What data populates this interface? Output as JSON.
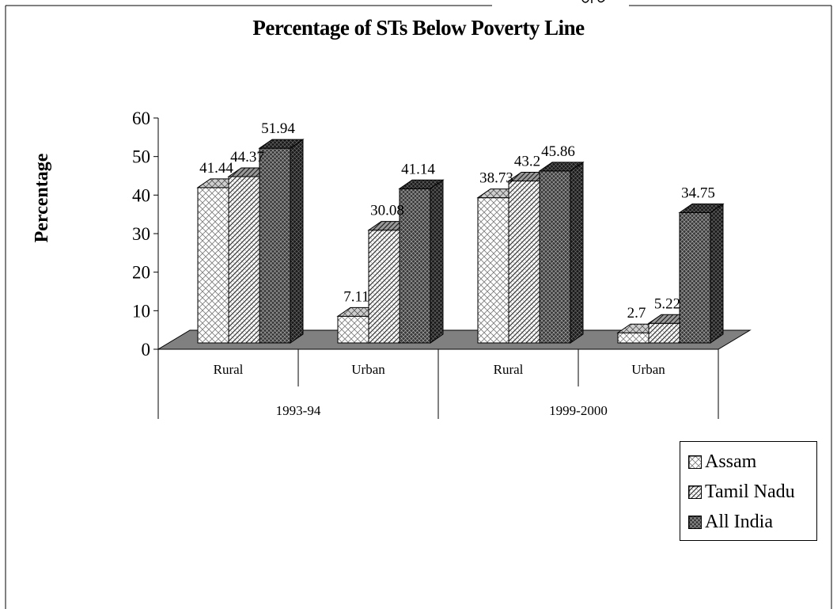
{
  "chart_data": {
    "type": "bar",
    "title": "Percentage of STs Below Poverty Line",
    "ylabel": "Percentage",
    "xlabel": "",
    "ylim": [
      0,
      60
    ],
    "yticks": [
      "0",
      "10",
      "20",
      "30",
      "40",
      "50",
      "60"
    ],
    "groups": [
      {
        "label": "1993-94",
        "categories": [
          "Rural",
          "Urban"
        ]
      },
      {
        "label": "1999-2000",
        "categories": [
          "Rural",
          "Urban"
        ]
      }
    ],
    "categories": [
      "Rural",
      "Urban",
      "Rural",
      "Urban"
    ],
    "series": [
      {
        "name": "Assam",
        "values": [
          41.44,
          7.11,
          38.73,
          2.7
        ],
        "labels": [
          "41.44",
          "7.11",
          "38.73",
          "2.7"
        ]
      },
      {
        "name": "Tamil Nadu",
        "values": [
          44.37,
          30.08,
          43.2,
          5.22
        ],
        "labels": [
          "44.37",
          "30.08",
          "43.2",
          "5.22"
        ]
      },
      {
        "name": "All India",
        "values": [
          51.94,
          41.14,
          45.86,
          34.75
        ],
        "labels": [
          "51.94",
          "41.14",
          "45.86",
          "34.75"
        ]
      }
    ],
    "three_d": true,
    "grid": false,
    "legend_position": "bottom-right"
  },
  "legend": {
    "items": [
      {
        "label": "Assam",
        "pattern": "light-crosshatch"
      },
      {
        "label": "Tamil Nadu",
        "pattern": "diagonal-hatch"
      },
      {
        "label": "All India",
        "pattern": "dark-crosshatch"
      }
    ]
  },
  "colors": {
    "floor": "#808080",
    "axis": "#000000",
    "background": "#ffffff"
  }
}
